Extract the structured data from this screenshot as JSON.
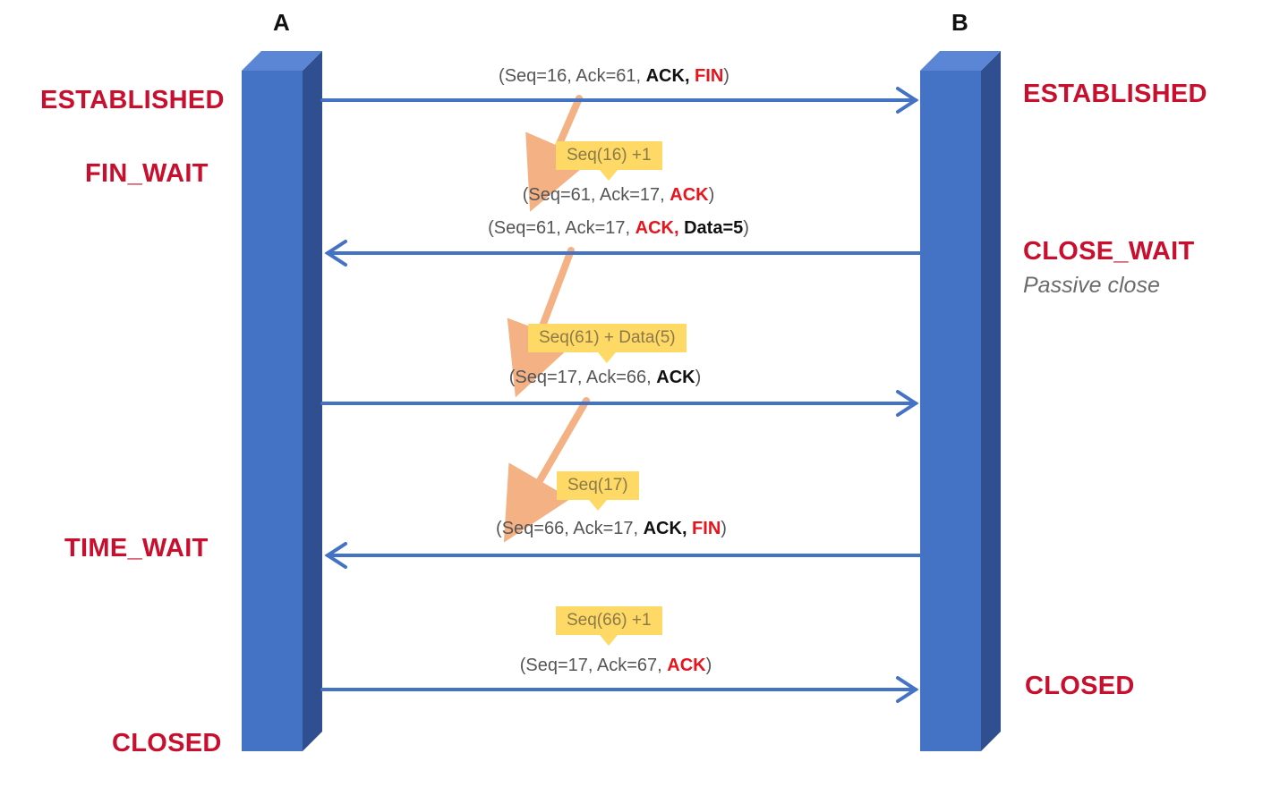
{
  "hosts": {
    "a": "A",
    "b": "B"
  },
  "states_a": {
    "established": "ESTABLISHED",
    "fin_wait": "FIN_WAIT",
    "time_wait": "TIME_WAIT",
    "closed": "CLOSED"
  },
  "states_b": {
    "established": "ESTABLISHED",
    "close_wait": "CLOSE_WAIT",
    "close_wait_note": "Passive close",
    "closed": "CLOSED"
  },
  "messages": [
    {
      "pre": "(Seq=16, Ack=61, ",
      "flag1": "ACK,",
      "flag2": " FIN",
      "post": ")"
    },
    {
      "pre": "(Seq=61, Ack=17, ",
      "flag1": "ACK",
      "post": ")"
    },
    {
      "pre": "(Seq=61, Ack=17, ",
      "flag1": "ACK,",
      "flag2": " Data=5",
      "post": ")"
    },
    {
      "pre": "(Seq=17, Ack=66, ",
      "flag1": "ACK",
      "post": ")"
    },
    {
      "pre": "(Seq=66, Ack=17, ",
      "flag1": "ACK,",
      "flag2": " FIN",
      "post": ")"
    },
    {
      "pre": "(Seq=17, Ack=67, ",
      "flag1": "ACK",
      "post": ")"
    }
  ],
  "calculations": [
    "Seq(16) +1",
    "Seq(61) + Data(5)",
    "Seq(17)",
    "Seq(66) +1"
  ],
  "colors": {
    "host_bar": "#4472c4",
    "host_bar_dark": "#2f4f91",
    "arrow": "#4472c4",
    "derive_arrow": "#f4b183",
    "state_text": "#c8102e",
    "flag_red": "#e8141c",
    "calc_box": "#ffd966"
  }
}
